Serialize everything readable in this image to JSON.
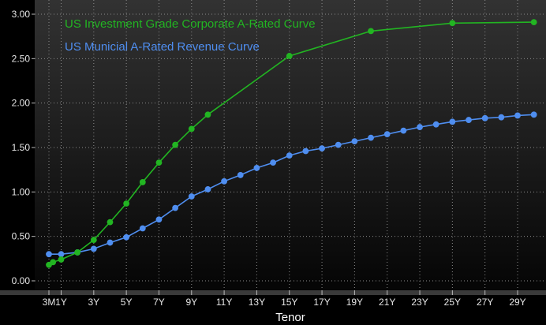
{
  "chart_data": {
    "type": "line",
    "xlabel": "Tenor",
    "ylabel": "",
    "ylim": [
      0.0,
      3.0
    ],
    "y_ticks": [
      "0.00",
      "0.50",
      "1.00",
      "1.50",
      "2.00",
      "2.50",
      "3.00"
    ],
    "x_ticks": [
      "3M",
      "1Y",
      "3Y",
      "5Y",
      "7Y",
      "9Y",
      "11Y",
      "13Y",
      "15Y",
      "17Y",
      "19Y",
      "21Y",
      "23Y",
      "25Y",
      "27Y",
      "29Y"
    ],
    "grid": true,
    "legend_position": "top-left",
    "series": [
      {
        "name": "US Investment Grade Corporate A-Rated Curve",
        "color": "#22b522",
        "x": [
          0.25,
          0.5,
          1,
          2,
          3,
          4,
          5,
          6,
          7,
          8,
          9,
          10,
          15,
          20,
          25,
          30
        ],
        "y": [
          0.18,
          0.21,
          0.24,
          0.32,
          0.46,
          0.66,
          0.87,
          1.11,
          1.33,
          1.53,
          1.71,
          1.87,
          2.53,
          2.81,
          2.9,
          2.91
        ]
      },
      {
        "name": "US Municial A-Rated Revenue Curve",
        "color": "#4f8ef0",
        "x": [
          0.25,
          1,
          2,
          3,
          4,
          5,
          6,
          7,
          8,
          9,
          10,
          11,
          12,
          13,
          14,
          15,
          16,
          17,
          18,
          19,
          20,
          21,
          22,
          23,
          24,
          25,
          26,
          27,
          28,
          29,
          30
        ],
        "y": [
          0.3,
          0.3,
          0.32,
          0.36,
          0.43,
          0.49,
          0.59,
          0.69,
          0.82,
          0.95,
          1.03,
          1.12,
          1.19,
          1.27,
          1.33,
          1.41,
          1.46,
          1.49,
          1.53,
          1.57,
          1.61,
          1.65,
          1.69,
          1.73,
          1.76,
          1.79,
          1.81,
          1.83,
          1.84,
          1.86,
          1.87
        ]
      }
    ]
  }
}
